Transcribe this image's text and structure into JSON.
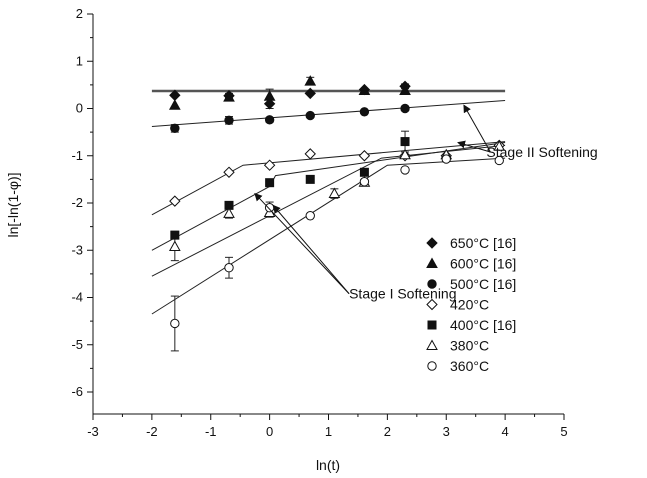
{
  "chart_data": {
    "type": "scatter",
    "xlabel": "ln(t)",
    "ylabel": "ln[-ln(1-φ)]",
    "xlim": [
      -3,
      5
    ],
    "ylim": [
      -6,
      2
    ],
    "xticks": [
      "-3",
      "-2",
      "-1",
      "0",
      "1",
      "2",
      "3",
      "4",
      "5"
    ],
    "yticks": [
      "-6",
      "-5",
      "-4",
      "-3",
      "-2",
      "-1",
      "0",
      "1",
      "2"
    ],
    "grid": false,
    "legend_position": "bottom-right",
    "series": [
      {
        "name": "650°C [16]",
        "marker": "diamond-filled",
        "points": [
          [
            -1.61,
            0.28
          ],
          [
            -0.69,
            0.27
          ],
          [
            0.0,
            0.1
          ],
          [
            0.69,
            0.32
          ],
          [
            1.61,
            0.4
          ],
          [
            2.3,
            0.47
          ]
        ],
        "errors": [
          0,
          0.05,
          0.1,
          0,
          0,
          0.05
        ]
      },
      {
        "name": "600°C [16]",
        "marker": "triangle-filled",
        "points": [
          [
            -1.61,
            0.07
          ],
          [
            -0.69,
            0.24
          ],
          [
            0.0,
            0.26
          ],
          [
            0.69,
            0.58
          ],
          [
            1.61,
            0.38
          ],
          [
            2.3,
            0.38
          ]
        ],
        "errors": [
          0,
          0,
          0.15,
          0.08,
          0,
          0
        ]
      },
      {
        "name": "500°C [16]",
        "marker": "circle-filled",
        "points": [
          [
            -1.61,
            -0.42
          ],
          [
            -0.69,
            -0.25
          ],
          [
            0.0,
            -0.24
          ],
          [
            0.69,
            -0.15
          ],
          [
            1.61,
            -0.07
          ],
          [
            2.3,
            0.0
          ]
        ],
        "errors": [
          0.08,
          0.08,
          0.05,
          0,
          0,
          0
        ]
      },
      {
        "name": "420°C",
        "marker": "diamond-open",
        "points": [
          [
            -1.61,
            -1.96
          ],
          [
            -0.69,
            -1.35
          ],
          [
            0.0,
            -1.2
          ],
          [
            0.69,
            -0.96
          ],
          [
            1.61,
            -1.0
          ],
          [
            2.3,
            -1.0
          ],
          [
            3.0,
            -1.0
          ],
          [
            3.9,
            -0.78
          ]
        ],
        "errors": [
          0,
          0,
          0,
          0,
          0,
          0,
          0,
          0
        ]
      },
      {
        "name": "400°C [16]",
        "marker": "square-filled",
        "points": [
          [
            -1.61,
            -2.68
          ],
          [
            -0.69,
            -2.05
          ],
          [
            0.0,
            -1.57
          ],
          [
            0.69,
            -1.5
          ],
          [
            1.61,
            -1.35
          ],
          [
            2.3,
            -0.7
          ]
        ],
        "errors": [
          0.08,
          0,
          0,
          0,
          0,
          0.22
        ]
      },
      {
        "name": "380°C",
        "marker": "triangle-open",
        "points": [
          [
            -1.61,
            -2.92
          ],
          [
            -0.69,
            -2.22
          ],
          [
            0.0,
            -2.2
          ],
          [
            1.1,
            -1.8
          ],
          [
            1.61,
            -1.56
          ],
          [
            2.3,
            -0.98
          ],
          [
            3.0,
            -0.98
          ],
          [
            3.9,
            -0.8
          ]
        ],
        "errors": [
          0.3,
          0.1,
          0.1,
          0.1,
          0.05,
          0,
          0,
          0.05
        ]
      },
      {
        "name": "360°C",
        "marker": "circle-open",
        "points": [
          [
            -1.61,
            -4.55
          ],
          [
            -0.69,
            -3.37
          ],
          [
            0.0,
            -2.1
          ],
          [
            0.69,
            -2.27
          ],
          [
            1.61,
            -1.55
          ],
          [
            2.3,
            -1.3
          ],
          [
            3.0,
            -1.07
          ],
          [
            3.9,
            -1.1
          ]
        ],
        "errors": [
          0.58,
          0.22,
          0.12,
          0,
          0.05,
          0,
          0.05,
          0
        ]
      }
    ],
    "fit_lines": [
      {
        "series": "650/600",
        "points": [
          [
            -2.0,
            0.37
          ],
          [
            4.0,
            0.37
          ]
        ],
        "thick": true
      },
      {
        "series": "500",
        "points": [
          [
            -2.0,
            -0.38
          ],
          [
            4.0,
            0.17
          ]
        ]
      },
      {
        "series": "420",
        "points": [
          [
            -2.0,
            -2.25
          ],
          [
            -0.45,
            -1.2
          ],
          [
            4.0,
            -0.7
          ]
        ]
      },
      {
        "series": "400",
        "points": [
          [
            -2.0,
            -3.0
          ],
          [
            0.0,
            -1.65
          ],
          [
            0.1,
            -1.42
          ],
          [
            4.0,
            -0.72
          ]
        ]
      },
      {
        "series": "380",
        "points": [
          [
            -2.0,
            -3.55
          ],
          [
            1.9,
            -1.05
          ],
          [
            4.0,
            -0.78
          ]
        ]
      },
      {
        "series": "360",
        "points": [
          [
            -2.0,
            -4.35
          ],
          [
            2.0,
            -1.2
          ],
          [
            4.0,
            -1.05
          ]
        ]
      }
    ],
    "annotations": [
      {
        "text": "Stage II Softening",
        "anchor": [
          3.75,
          -0.92
        ],
        "arrows_to": [
          [
            3.3,
            0.07
          ],
          [
            3.2,
            -0.72
          ]
        ]
      },
      {
        "text": "Stage I Softening",
        "anchor": [
          1.35,
          -3.92
        ],
        "arrows_to": [
          [
            -0.25,
            -1.8
          ],
          [
            0.06,
            -2.05
          ]
        ]
      }
    ]
  }
}
